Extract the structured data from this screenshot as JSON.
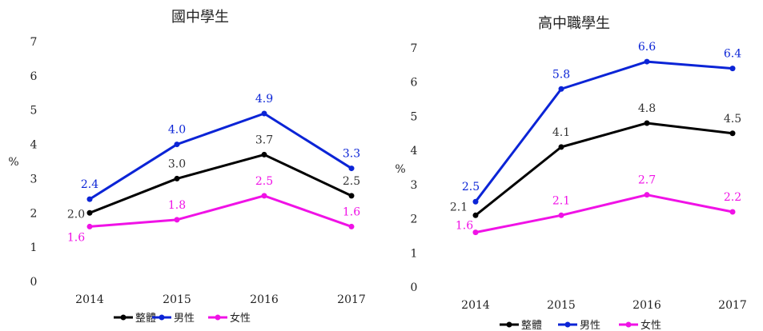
{
  "chart_data": [
    {
      "type": "line",
      "title": "國中學生",
      "ylabel": "%",
      "xlabel": "",
      "categories": [
        "2014",
        "2015",
        "2016",
        "2017"
      ],
      "ylim": [
        0,
        7
      ],
      "yticks": [
        "0",
        "1",
        "2",
        "3",
        "4",
        "5",
        "6",
        "7"
      ],
      "series": [
        {
          "name": "男性",
          "color": "#0b24d6",
          "values": [
            2.4,
            4.0,
            4.9,
            3.3
          ],
          "labels": [
            "2.4",
            "4.0",
            "4.9",
            "3.3"
          ]
        },
        {
          "name": "整體",
          "color": "#000000",
          "values": [
            2.0,
            3.0,
            3.7,
            2.5
          ],
          "labels": [
            "2.0",
            "3.0",
            "3.7",
            "2.5"
          ]
        },
        {
          "name": "女性",
          "color": "#f012e6",
          "values": [
            1.6,
            1.8,
            2.5,
            1.6
          ],
          "labels": [
            "1.6",
            "1.8",
            "2.5",
            "1.6"
          ]
        }
      ],
      "legend": [
        "整體",
        "男性",
        "女性"
      ],
      "legend_position": "bottom",
      "grid": false
    },
    {
      "type": "line",
      "title": "高中職學生",
      "ylabel": "%",
      "xlabel": "",
      "categories": [
        "2014",
        "2015",
        "2016",
        "2017"
      ],
      "ylim": [
        0,
        7
      ],
      "yticks": [
        "0",
        "1",
        "2",
        "3",
        "4",
        "5",
        "6",
        "7"
      ],
      "series": [
        {
          "name": "男性",
          "color": "#0b24d6",
          "values": [
            2.5,
            5.8,
            6.6,
            6.4
          ],
          "labels": [
            "2.5",
            "5.8",
            "6.6",
            "6.4"
          ]
        },
        {
          "name": "整體",
          "color": "#000000",
          "values": [
            2.1,
            4.1,
            4.8,
            4.5
          ],
          "labels": [
            "2.1",
            "4.1",
            "4.8",
            "4.5"
          ]
        },
        {
          "name": "女性",
          "color": "#f012e6",
          "values": [
            1.6,
            2.1,
            2.7,
            2.2
          ],
          "labels": [
            "1.6",
            "2.1",
            "2.7",
            "2.2"
          ]
        }
      ],
      "legend": [
        "整體",
        "男性",
        "女性"
      ],
      "legend_position": "bottom",
      "grid": false
    }
  ]
}
